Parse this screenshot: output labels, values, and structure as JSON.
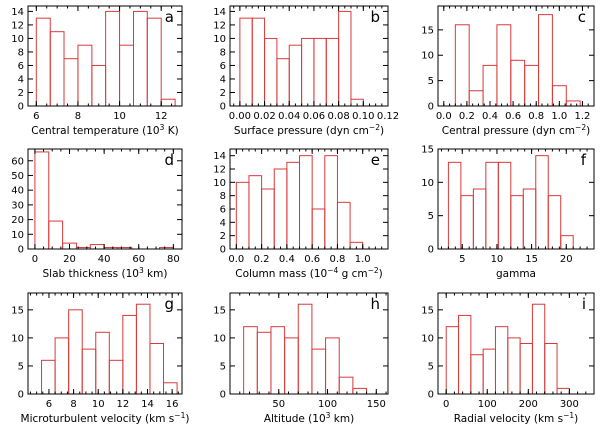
{
  "chart_data": [
    {
      "type": "histogram",
      "panel": "a",
      "xlabel_html": [
        "Central temperature (10",
        {
          "sup": "3"
        },
        " K)"
      ],
      "xlabel": "Central temperature (10^3 K)",
      "xlim": [
        5.6,
        13.0
      ],
      "ylim": [
        0,
        14.8
      ],
      "xticks": [
        6,
        8,
        10,
        12
      ],
      "xminor": 0.5,
      "yticks": [
        0,
        2,
        4,
        6,
        8,
        10,
        12,
        14
      ],
      "bins": [
        [
          6.0,
          6.67
        ],
        [
          6.67,
          7.33
        ],
        [
          7.33,
          8.0
        ],
        [
          8.0,
          8.67
        ],
        [
          8.67,
          9.33
        ],
        [
          9.33,
          10.0
        ],
        [
          10.0,
          10.67
        ],
        [
          10.67,
          11.33
        ],
        [
          11.33,
          12.0
        ],
        [
          12.0,
          12.67
        ]
      ],
      "values": [
        13,
        11,
        7,
        9,
        6,
        14,
        9,
        14,
        13,
        1
      ]
    },
    {
      "type": "histogram",
      "panel": "b",
      "xlabel_html": [
        "Surface pressure (dyn cm",
        {
          "sup": "−2"
        },
        ")"
      ],
      "xlabel": "Surface pressure (dyn cm^-2)",
      "xlim": [
        -0.008,
        0.12
      ],
      "ylim": [
        0,
        14.8
      ],
      "xticks": [
        0.0,
        0.02,
        0.04,
        0.06,
        0.08,
        0.1,
        0.12
      ],
      "xtick_labels": [
        "0.00",
        "0.02",
        "0.04",
        "0.06",
        "0.08",
        "0.10",
        "0.12"
      ],
      "xminor": 0.005,
      "yticks": [
        0,
        2,
        4,
        6,
        8,
        10,
        12,
        14
      ],
      "bins": [
        [
          0.0,
          0.01
        ],
        [
          0.01,
          0.02
        ],
        [
          0.02,
          0.03
        ],
        [
          0.03,
          0.04
        ],
        [
          0.04,
          0.05
        ],
        [
          0.05,
          0.06
        ],
        [
          0.06,
          0.07
        ],
        [
          0.07,
          0.08
        ],
        [
          0.08,
          0.09
        ],
        [
          0.09,
          0.1
        ],
        [
          0.1,
          0.11
        ]
      ],
      "values": [
        13,
        13,
        10,
        7,
        9,
        10,
        10,
        10,
        14,
        1,
        0
      ]
    },
    {
      "type": "histogram",
      "panel": "c",
      "xlabel_html": [
        "Central pressure (dyn cm",
        {
          "sup": "−2"
        },
        ")"
      ],
      "xlabel": "Central pressure (dyn cm^-2)",
      "xlim": [
        -0.05,
        1.3
      ],
      "ylim": [
        0,
        19.7
      ],
      "xticks": [
        0.0,
        0.2,
        0.4,
        0.6,
        0.8,
        1.0,
        1.2
      ],
      "xtick_labels": [
        "0.0",
        "0.2",
        "0.4",
        "0.6",
        "0.8",
        "1.0",
        "1.2"
      ],
      "xminor": 0.05,
      "yticks": [
        0,
        5,
        10,
        15
      ],
      "bins": [
        [
          0.1,
          0.22
        ],
        [
          0.22,
          0.34
        ],
        [
          0.34,
          0.46
        ],
        [
          0.46,
          0.58
        ],
        [
          0.58,
          0.7
        ],
        [
          0.7,
          0.82
        ],
        [
          0.82,
          0.94
        ],
        [
          0.94,
          1.06
        ],
        [
          1.06,
          1.18
        ]
      ],
      "values": [
        16,
        3,
        8,
        16,
        9,
        8,
        18,
        4,
        1
      ]
    },
    {
      "type": "histogram",
      "panel": "d",
      "xlabel_html": [
        "Slab thickness (10",
        {
          "sup": "3"
        },
        " km)"
      ],
      "xlabel": "Slab thickness (10^3 km)",
      "xlim": [
        -4,
        85
      ],
      "ylim": [
        0,
        68
      ],
      "xticks": [
        0,
        20,
        40,
        60,
        80
      ],
      "xminor": 5,
      "yticks": [
        0,
        10,
        20,
        30,
        40,
        50,
        60
      ],
      "bins": [
        [
          0,
          8
        ],
        [
          8,
          16
        ],
        [
          16,
          24
        ],
        [
          24,
          32
        ],
        [
          32,
          40
        ],
        [
          40,
          48
        ],
        [
          48,
          56
        ],
        [
          56,
          64
        ],
        [
          64,
          72
        ],
        [
          72,
          80
        ]
      ],
      "values": [
        66,
        19,
        4,
        1,
        3,
        1,
        1,
        0,
        0,
        1
      ]
    },
    {
      "type": "histogram",
      "panel": "e",
      "xlabel_html": [
        "Column mass (10",
        {
          "sup": "−4"
        },
        " g cm",
        {
          "sup": "−2"
        },
        ")"
      ],
      "xlabel": "Column mass (10^-4 g cm^-2)",
      "xlim": [
        -0.05,
        1.2
      ],
      "ylim": [
        0,
        15
      ],
      "xticks": [
        0.0,
        0.2,
        0.4,
        0.6,
        0.8,
        1.0
      ],
      "xtick_labels": [
        "0.0",
        "0.2",
        "0.4",
        "0.6",
        "0.8",
        "1.0"
      ],
      "xminor": 0.05,
      "yticks": [
        0,
        2,
        4,
        6,
        8,
        10,
        12,
        14
      ],
      "bins": [
        [
          0.0,
          0.1
        ],
        [
          0.1,
          0.2
        ],
        [
          0.2,
          0.3
        ],
        [
          0.3,
          0.4
        ],
        [
          0.4,
          0.5
        ],
        [
          0.5,
          0.6
        ],
        [
          0.6,
          0.7
        ],
        [
          0.7,
          0.8
        ],
        [
          0.8,
          0.9
        ],
        [
          0.9,
          1.0
        ]
      ],
      "values": [
        10,
        11,
        9,
        12,
        13,
        14,
        6,
        14,
        7,
        1
      ]
    },
    {
      "type": "histogram",
      "panel": "f",
      "xlabel_html": [
        "gamma"
      ],
      "xlabel": "gamma",
      "xlim": [
        1.5,
        24
      ],
      "ylim": [
        0,
        15
      ],
      "xticks": [
        5,
        10,
        15,
        20
      ],
      "xminor": 1,
      "yticks": [
        0,
        5,
        10,
        15
      ],
      "bins": [
        [
          3.0,
          4.8
        ],
        [
          4.8,
          6.6
        ],
        [
          6.6,
          8.4
        ],
        [
          8.4,
          10.2
        ],
        [
          10.2,
          12.0
        ],
        [
          12.0,
          13.8
        ],
        [
          13.8,
          15.6
        ],
        [
          15.6,
          17.4
        ],
        [
          17.4,
          19.2
        ],
        [
          19.2,
          21.0
        ]
      ],
      "values": [
        13,
        8,
        9,
        13,
        13,
        8,
        9,
        14,
        8,
        2
      ]
    },
    {
      "type": "histogram",
      "panel": "g",
      "xlabel_html": [
        "Microturbulent velocity (km s",
        {
          "sup": "−1"
        },
        ")"
      ],
      "xlabel": "Microturbulent velocity (km s^-1)",
      "xlim": [
        4.3,
        16.8
      ],
      "ylim": [
        0,
        18
      ],
      "xticks": [
        6,
        8,
        10,
        12,
        14,
        16
      ],
      "xminor": 0.5,
      "yticks": [
        0,
        5,
        10,
        15
      ],
      "bins": [
        [
          5.4,
          6.5
        ],
        [
          6.5,
          7.6
        ],
        [
          7.6,
          8.7
        ],
        [
          8.7,
          9.8
        ],
        [
          9.8,
          10.9
        ],
        [
          10.9,
          12.0
        ],
        [
          12.0,
          13.1
        ],
        [
          13.1,
          14.2
        ],
        [
          14.2,
          15.3
        ],
        [
          15.3,
          16.4
        ]
      ],
      "values": [
        6,
        10,
        15,
        8,
        11,
        6,
        14,
        16,
        9,
        2
      ]
    },
    {
      "type": "histogram",
      "panel": "h",
      "xlabel_html": [
        "Altitude (10",
        {
          "sup": "3"
        },
        " km)"
      ],
      "xlabel": "Altitude (10^3 km)",
      "xlim": [
        0,
        162
      ],
      "ylim": [
        0,
        18
      ],
      "xticks": [
        50,
        100,
        150
      ],
      "xminor": 10,
      "yticks": [
        0,
        5,
        10,
        15
      ],
      "bins": [
        [
          14,
          28
        ],
        [
          28,
          42
        ],
        [
          42,
          56
        ],
        [
          56,
          70
        ],
        [
          70,
          84
        ],
        [
          84,
          98
        ],
        [
          98,
          112
        ],
        [
          112,
          126
        ],
        [
          126,
          140
        ]
      ],
      "values": [
        12,
        11,
        12,
        10,
        16,
        8,
        10,
        3,
        1
      ]
    },
    {
      "type": "histogram",
      "panel": "i",
      "xlabel_html": [
        "Radial velocity (km s",
        {
          "sup": "−1"
        },
        ")"
      ],
      "xlabel": "Radial velocity (km s^-1)",
      "xlim": [
        -20,
        360
      ],
      "ylim": [
        0,
        18
      ],
      "xticks": [
        0,
        100,
        200,
        300
      ],
      "xminor": 20,
      "yticks": [
        0,
        5,
        10,
        15
      ],
      "bins": [
        [
          0,
          30
        ],
        [
          30,
          60
        ],
        [
          60,
          90
        ],
        [
          90,
          120
        ],
        [
          120,
          150
        ],
        [
          150,
          180
        ],
        [
          180,
          210
        ],
        [
          210,
          240
        ],
        [
          240,
          270
        ],
        [
          270,
          300
        ]
      ],
      "values": [
        12,
        14,
        7,
        8,
        12,
        10,
        9,
        16,
        9,
        1
      ]
    }
  ]
}
